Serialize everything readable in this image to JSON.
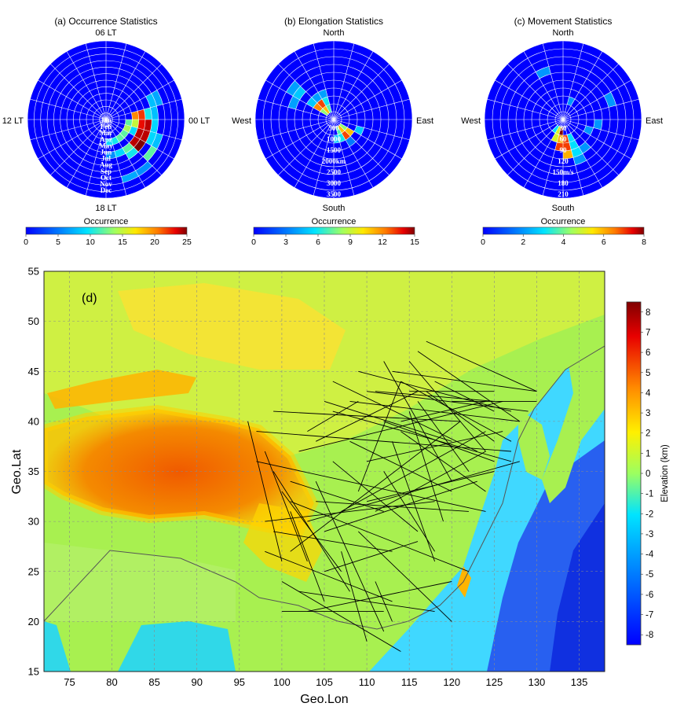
{
  "colors": {
    "background": "#0000ff",
    "grid": "#ffffff",
    "track": "#000000"
  },
  "chart_data": [
    {
      "type": "heatmap",
      "title": "(a) Occurrence Statistics",
      "polar": true,
      "angle_labels": {
        "top": "06 LT",
        "right": "00 LT",
        "bottom": "18 LT",
        "left": "12 LT"
      },
      "radial_labels": [
        "Jan",
        "Feb",
        "Mar",
        "Apr",
        "May",
        "Jun",
        "Jul",
        "Aug",
        "Sep",
        "Oct",
        "Nov",
        "Dec"
      ],
      "colorbar": {
        "label": "Occurrence",
        "min": 0,
        "max": 25,
        "ticks": [
          "0",
          "5",
          "10",
          "15",
          "20",
          "25"
        ]
      },
      "cells": [
        {
          "ring": 4,
          "sector": 5,
          "v": 20
        },
        {
          "ring": 4,
          "sector": 6,
          "v": 15
        },
        {
          "ring": 4,
          "sector": 7,
          "v": 9
        },
        {
          "ring": 5,
          "sector": 5,
          "v": 22
        },
        {
          "ring": 5,
          "sector": 6,
          "v": 23
        },
        {
          "ring": 5,
          "sector": 7,
          "v": 24
        },
        {
          "ring": 5,
          "sector": 8,
          "v": 24
        },
        {
          "ring": 5,
          "sector": 9,
          "v": 12
        },
        {
          "ring": 5,
          "sector": 10,
          "v": 9
        },
        {
          "ring": 5,
          "sector": 11,
          "v": 6
        },
        {
          "ring": 6,
          "sector": 5,
          "v": 10
        },
        {
          "ring": 6,
          "sector": 6,
          "v": 24
        },
        {
          "ring": 6,
          "sector": 7,
          "v": 24
        },
        {
          "ring": 6,
          "sector": 8,
          "v": 25
        },
        {
          "ring": 6,
          "sector": 9,
          "v": 10
        },
        {
          "ring": 7,
          "sector": 4,
          "v": 8
        },
        {
          "ring": 7,
          "sector": 5,
          "v": 8
        },
        {
          "ring": 7,
          "sector": 6,
          "v": 9
        },
        {
          "ring": 7,
          "sector": 7,
          "v": 9
        },
        {
          "ring": 8,
          "sector": 4,
          "v": 7
        },
        {
          "ring": 8,
          "sector": 7,
          "v": 8
        },
        {
          "ring": 8,
          "sector": 8,
          "v": 12
        },
        {
          "ring": 3,
          "sector": 6,
          "v": 12
        },
        {
          "ring": 3,
          "sector": 7,
          "v": 14
        },
        {
          "ring": 3,
          "sector": 8,
          "v": 12
        },
        {
          "ring": 3,
          "sector": 9,
          "v": 12
        },
        {
          "ring": 3,
          "sector": 10,
          "v": 10
        },
        {
          "ring": 3,
          "sector": 11,
          "v": 9
        },
        {
          "ring": 9,
          "sector": 9,
          "v": 6
        },
        {
          "ring": 9,
          "sector": 10,
          "v": 7
        }
      ]
    },
    {
      "type": "heatmap",
      "title": "(b) Elongation Statistics",
      "polar": true,
      "angle_labels": {
        "top": "North",
        "right": "East",
        "bottom": "South",
        "left": "West"
      },
      "radial_labels": [
        "500",
        "1000",
        "1500",
        "2000km",
        "2500",
        "3000",
        "3500"
      ],
      "colorbar": {
        "label": "Occurrence",
        "min": 0,
        "max": 15,
        "ticks": [
          "0",
          "3",
          "6",
          "9",
          "12",
          "15"
        ]
      },
      "cells": [
        {
          "ring": 1,
          "sector": 8,
          "v": 8
        },
        {
          "ring": 1,
          "sector": 9,
          "v": 11
        },
        {
          "ring": 1,
          "sector": 10,
          "v": 7
        },
        {
          "ring": 2,
          "sector": 8,
          "v": 11
        },
        {
          "ring": 2,
          "sector": 9,
          "v": 13
        },
        {
          "ring": 2,
          "sector": 10,
          "v": 6
        },
        {
          "ring": 2,
          "sector": 11,
          "v": 5
        },
        {
          "ring": 3,
          "sector": 7,
          "v": 5
        },
        {
          "ring": 3,
          "sector": 9,
          "v": 3
        },
        {
          "ring": 1,
          "sector": 20,
          "v": 8
        },
        {
          "ring": 1,
          "sector": 21,
          "v": 11
        },
        {
          "ring": 1,
          "sector": 22,
          "v": 7
        },
        {
          "ring": 2,
          "sector": 20,
          "v": 12
        },
        {
          "ring": 2,
          "sector": 21,
          "v": 13
        },
        {
          "ring": 2,
          "sector": 22,
          "v": 6
        },
        {
          "ring": 3,
          "sector": 20,
          "v": 5
        },
        {
          "ring": 3,
          "sector": 21,
          "v": 4
        },
        {
          "ring": 3,
          "sector": 22,
          "v": 4
        },
        {
          "ring": 5,
          "sector": 19,
          "v": 4
        },
        {
          "ring": 5,
          "sector": 20,
          "v": 5
        },
        {
          "ring": 6,
          "sector": 20,
          "v": 4
        }
      ]
    },
    {
      "type": "heatmap",
      "title": "(c) Movement Statistics",
      "polar": true,
      "angle_labels": {
        "top": "North",
        "right": "East",
        "bottom": "South",
        "left": "West"
      },
      "radial_labels": [
        "30",
        "60",
        "90",
        "120",
        "150m/s",
        "180",
        "210"
      ],
      "colorbar": {
        "label": "Occurrence",
        "min": 0,
        "max": 8,
        "ticks": [
          "0",
          "2",
          "4",
          "6",
          "8"
        ]
      },
      "cells": [
        {
          "ring": 1,
          "sector": 12,
          "v": 8
        },
        {
          "ring": 1,
          "sector": 13,
          "v": 5
        },
        {
          "ring": 1,
          "sector": 14,
          "v": 3
        },
        {
          "ring": 2,
          "sector": 11,
          "v": 7
        },
        {
          "ring": 2,
          "sector": 12,
          "v": 6
        },
        {
          "ring": 2,
          "sector": 13,
          "v": 5
        },
        {
          "ring": 2,
          "sector": 10,
          "v": 3
        },
        {
          "ring": 3,
          "sector": 11,
          "v": 7
        },
        {
          "ring": 3,
          "sector": 12,
          "v": 7
        },
        {
          "ring": 3,
          "sector": 10,
          "v": 3
        },
        {
          "ring": 4,
          "sector": 11,
          "v": 6
        },
        {
          "ring": 4,
          "sector": 10,
          "v": 3
        },
        {
          "ring": 4,
          "sector": 9,
          "v": 2
        },
        {
          "ring": 5,
          "sector": 10,
          "v": 2
        },
        {
          "ring": 6,
          "sector": 4,
          "v": 2
        },
        {
          "ring": 6,
          "sector": 22,
          "v": 2
        },
        {
          "ring": 3,
          "sector": 7,
          "v": 2
        },
        {
          "ring": 4,
          "sector": 6,
          "v": 2
        },
        {
          "ring": 2,
          "sector": 1,
          "v": 2
        }
      ]
    },
    {
      "type": "map",
      "label": "(d)",
      "xlabel": "Geo.Lon",
      "ylabel": "Geo.Lat",
      "xlim": [
        72,
        138
      ],
      "ylim": [
        15,
        55
      ],
      "xticks": [
        "75",
        "80",
        "85",
        "90",
        "95",
        "100",
        "105",
        "110",
        "115",
        "120",
        "125",
        "130",
        "135"
      ],
      "yticks": [
        "15",
        "20",
        "25",
        "30",
        "35",
        "40",
        "45",
        "50",
        "55"
      ],
      "colorbar": {
        "label": "Elevation (km)",
        "min": -8.5,
        "max": 8.5,
        "ticks": [
          "8",
          "7",
          "6",
          "5",
          "4",
          "3",
          "2",
          "1",
          "0",
          "-1",
          "-2",
          "-3",
          "-4",
          "-5",
          "-6",
          "-7",
          "-8"
        ]
      },
      "tracks": [
        [
          97,
          39,
          127,
          37
        ],
        [
          97,
          36,
          124,
          31
        ],
        [
          98,
          30,
          118,
          32
        ],
        [
          98,
          27,
          113,
          22
        ],
        [
          99,
          41,
          121,
          40
        ],
        [
          100,
          24,
          114,
          17
        ],
        [
          101,
          32,
          122,
          25
        ],
        [
          101,
          27,
          121,
          40
        ],
        [
          102,
          37,
          126,
          42
        ],
        [
          102,
          23,
          118,
          21
        ],
        [
          103,
          30,
          128,
          36
        ],
        [
          103,
          21,
          120,
          24
        ],
        [
          104,
          38,
          116,
          43
        ],
        [
          104,
          34,
          112,
          19
        ],
        [
          105,
          29,
          123,
          34
        ],
        [
          105,
          25,
          116,
          28
        ],
        [
          106,
          41,
          127,
          36
        ],
        [
          106,
          36,
          116,
          29
        ],
        [
          107,
          31,
          124,
          39
        ],
        [
          107,
          27,
          110,
          18
        ],
        [
          108,
          42,
          128,
          40
        ],
        [
          108,
          38,
          120,
          33
        ],
        [
          109,
          33,
          114,
          44
        ],
        [
          109,
          29,
          120,
          20
        ],
        [
          110,
          43,
          129,
          41
        ],
        [
          110,
          36,
          126,
          39
        ],
        [
          111,
          31,
          124,
          37
        ],
        [
          111,
          24,
          113,
          20
        ],
        [
          112,
          40,
          125,
          36
        ],
        [
          112,
          35,
          118,
          27
        ],
        [
          113,
          45,
          130,
          43
        ],
        [
          113,
          38,
          118,
          26
        ],
        [
          114,
          44,
          127,
          38
        ],
        [
          114,
          39,
          124,
          33
        ],
        [
          115,
          46,
          124,
          37
        ],
        [
          115,
          41,
          119,
          30
        ],
        [
          116,
          47,
          128,
          40
        ],
        [
          116,
          42,
          122,
          35
        ],
        [
          117,
          48,
          130,
          43
        ],
        [
          117,
          43,
          125,
          38
        ],
        [
          98,
          37,
          103,
          26
        ],
        [
          99,
          35,
          108,
          23
        ],
        [
          100,
          33,
          107,
          25
        ],
        [
          101,
          31,
          105,
          22
        ],
        [
          96,
          40,
          100,
          26
        ],
        [
          106,
          44,
          123,
          37
        ],
        [
          105,
          42,
          120,
          38
        ],
        [
          109,
          45,
          127,
          41
        ],
        [
          111,
          43,
          125,
          42
        ],
        [
          112,
          46,
          120,
          34
        ],
        [
          99,
          29,
          113,
          27
        ],
        [
          101,
          34,
          112,
          31
        ],
        [
          103,
          39,
          109,
          42
        ],
        [
          100,
          21,
          112,
          21
        ],
        [
          104,
          32,
          122,
          31
        ],
        [
          110,
          32,
          125,
          35
        ],
        [
          114,
          40,
          124,
          42
        ],
        [
          118,
          44,
          125,
          41
        ],
        [
          120,
          42,
          130,
          42
        ],
        [
          115,
          43,
          125,
          43
        ]
      ]
    }
  ]
}
